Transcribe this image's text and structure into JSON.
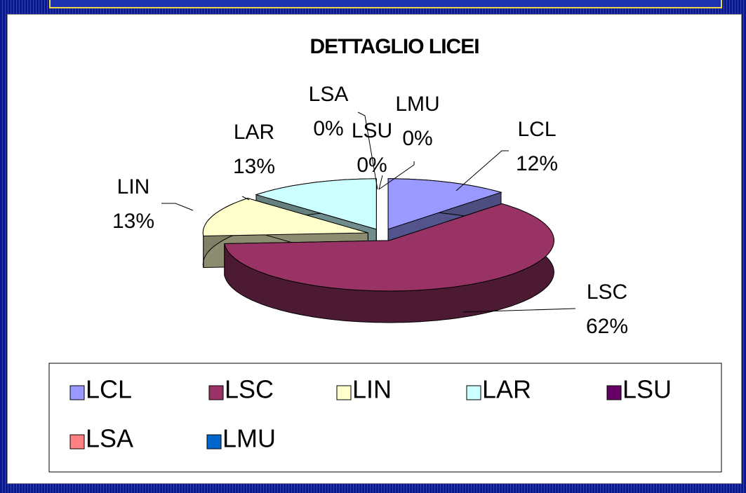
{
  "chart_data": {
    "type": "pie",
    "title": "DETTAGLIO LICEI",
    "categories": [
      "LCL",
      "LSC",
      "LIN",
      "LAR",
      "LSU",
      "LSA",
      "LMU"
    ],
    "values": [
      12,
      62,
      13,
      13,
      0,
      0,
      0
    ],
    "value_labels": [
      "12%",
      "62%",
      "13%",
      "13%",
      "0%",
      "0%",
      "0%"
    ],
    "colors": [
      "#9999ff",
      "#993366",
      "#ffffcc",
      "#ccffff",
      "#660066",
      "#ff8080",
      "#0066cc"
    ],
    "legend": "bottom"
  }
}
